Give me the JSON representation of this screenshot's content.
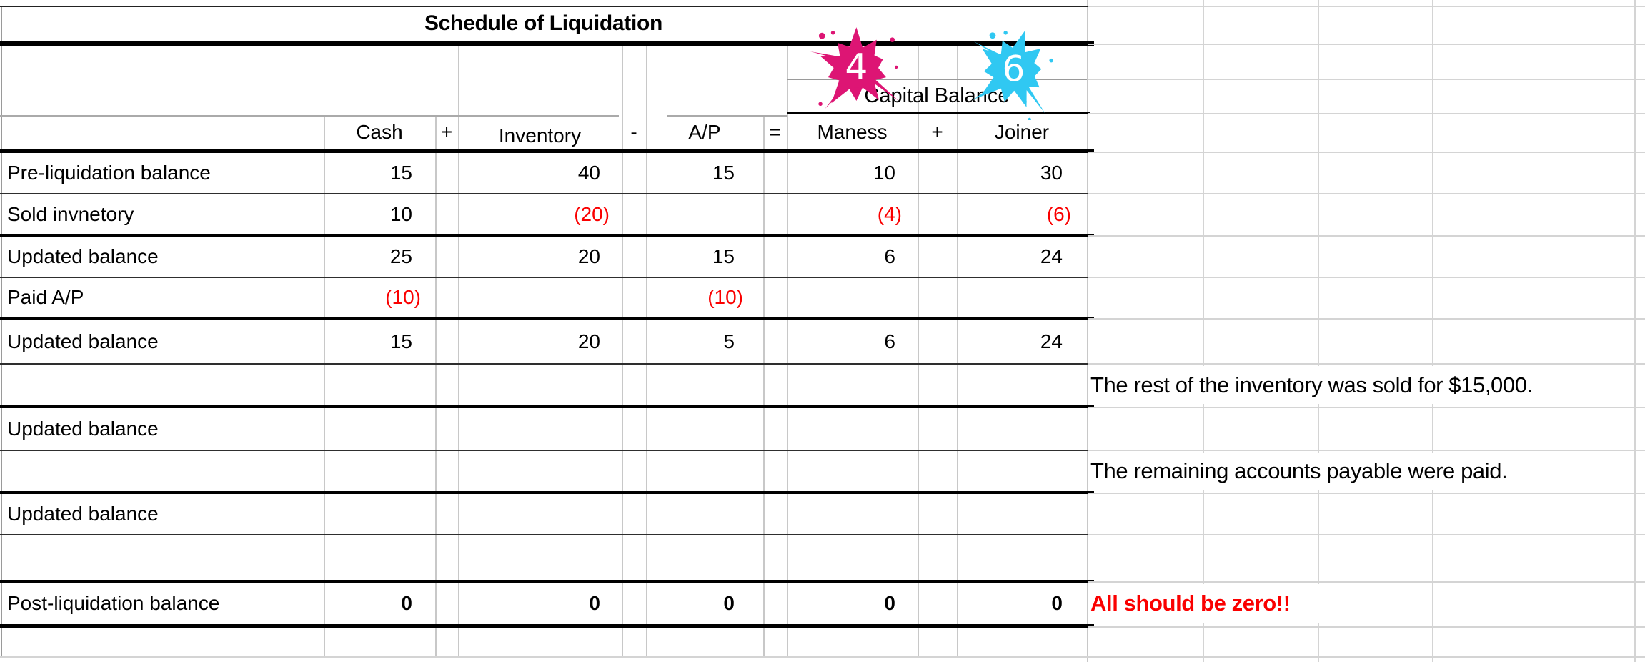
{
  "sheet": {
    "title": "Schedule of Liquidation",
    "capital_balance": "Capital Balance",
    "badge_maness": {
      "number": "4",
      "color": "#dd1574"
    },
    "badge_joiner": {
      "number": "6",
      "color": "#30c8f2"
    },
    "headers": {
      "cash": "Cash",
      "plus1": "+",
      "inventory": "Inventory",
      "minus": "-",
      "ap": "A/P",
      "equals": "=",
      "maness": "Maness",
      "plus2": "+",
      "joiner": "Joiner"
    },
    "rows": [
      {
        "label": "Pre-liquidation balance",
        "cash": "15",
        "inventory": "40",
        "ap": "15",
        "maness": "10",
        "joiner": "30"
      },
      {
        "label": "Sold invnetory",
        "cash": "10",
        "inventory": "(20)",
        "ap": "",
        "maness": "(4)",
        "joiner": "(6)"
      },
      {
        "label": "Updated balance",
        "cash": "25",
        "inventory": "20",
        "ap": "15",
        "maness": "6",
        "joiner": "24"
      },
      {
        "label": "Paid A/P",
        "cash": "(10)",
        "inventory": "",
        "ap": "(10)",
        "maness": "",
        "joiner": ""
      },
      {
        "label": "Updated balance",
        "cash": "15",
        "inventory": "20",
        "ap": "5",
        "maness": "6",
        "joiner": "24"
      },
      {
        "label": "",
        "cash": "",
        "inventory": "",
        "ap": "",
        "maness": "",
        "joiner": ""
      },
      {
        "label": "Updated balance",
        "cash": "",
        "inventory": "",
        "ap": "",
        "maness": "",
        "joiner": ""
      },
      {
        "label": "",
        "cash": "",
        "inventory": "",
        "ap": "",
        "maness": "",
        "joiner": ""
      },
      {
        "label": "Updated balance",
        "cash": "",
        "inventory": "",
        "ap": "",
        "maness": "",
        "joiner": ""
      },
      {
        "label": "",
        "cash": "",
        "inventory": "",
        "ap": "",
        "maness": "",
        "joiner": ""
      },
      {
        "label": "Post-liquidation balance",
        "cash": "0",
        "inventory": "0",
        "ap": "0",
        "maness": "0",
        "joiner": "0"
      }
    ],
    "notes": {
      "inventory": "The rest of the inventory was sold for $15,000.",
      "ap": "The remaining accounts payable were paid.",
      "zero": "All should be zero!!"
    },
    "colors": {
      "negative": "#fa0000",
      "grid_grey": "#d4d4d4"
    }
  }
}
